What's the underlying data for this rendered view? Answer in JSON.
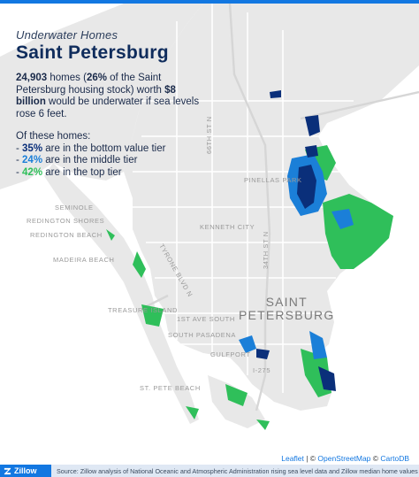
{
  "header": {
    "kicker": "Underwater Homes",
    "title": "Saint Petersburg"
  },
  "summary": {
    "homes_count": "24,903",
    "homes_text_a": " homes (",
    "homes_pct": "26%",
    "homes_text_b": " of the Saint Petersburg housing stock) worth ",
    "value": "$8 billion",
    "value_text": " would be underwater if sea levels rose 6 feet."
  },
  "tiers": {
    "heading": "Of these homes:",
    "items": [
      {
        "prefix": "- ",
        "pct": "35%",
        "text": " are in the bottom value tier",
        "tier": "bottom"
      },
      {
        "prefix": "- ",
        "pct": "24%",
        "text": " are in the middle tier",
        "tier": "middle"
      },
      {
        "prefix": "- ",
        "pct": "42%",
        "text": " are in the top tier",
        "tier": "top"
      }
    ]
  },
  "map_labels": {
    "pinellas_park": "PINELLAS PARK",
    "kenneth_city": "KENNETH CITY",
    "seminole": "SEMINOLE",
    "madeira_beach": "MADEIRA BEACH",
    "treasure_island": "TREASURE ISLAND",
    "south_pasadena": "SOUTH PASADENA",
    "st_pete_beach": "ST. PETE BEACH",
    "redington_shores": "REDINGTON SHORES",
    "redington_beach": "REDINGTON BEACH",
    "gulfport": "GULFPORT",
    "city_line1": "SAINT",
    "city_line2": "PETERSBURG",
    "road_66th": "66TH ST N",
    "road_tyrone": "TYRONE BLVD N",
    "road_34th": "34TH ST N",
    "road_1st_ave": "1ST AVE SOUTH",
    "road_i275": "I-275"
  },
  "legend_colors": {
    "bottom_tier": "#0a2f7a",
    "middle_tier": "#1b7fd8",
    "top_tier": "#2fbf5a"
  },
  "attribution": {
    "leaflet": "Leaflet",
    "sep": " | © ",
    "osm": "OpenStreetMap",
    "amp": " © ",
    "carto": "CartoDB"
  },
  "footer": {
    "brand": "Zillow",
    "source": "Source: Zillow analysis of National Oceanic and Atmospheric Administration rising sea level data and Zillow median home values"
  }
}
